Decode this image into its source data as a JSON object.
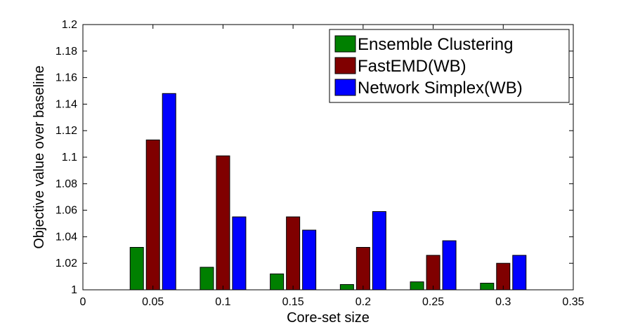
{
  "chart_data": {
    "type": "bar",
    "title": "",
    "xlabel": "Core-set size",
    "ylabel": "Objective value over baseline",
    "x": [
      0.05,
      0.1,
      0.15,
      0.2,
      0.25,
      0.3
    ],
    "xlim": [
      0,
      0.35
    ],
    "ylim": [
      1,
      1.2
    ],
    "xticks": [
      "0",
      "0.05",
      "0.1",
      "0.15",
      "0.2",
      "0.25",
      "0.3",
      "0.35"
    ],
    "yticks": [
      "1",
      "1.02",
      "1.04",
      "1.06",
      "1.08",
      "1.1",
      "1.12",
      "1.14",
      "1.16",
      "1.18",
      "1.2"
    ],
    "legend_position": "top-right",
    "grid": false,
    "series": [
      {
        "name": "Ensemble Clustering",
        "color": "#008000",
        "values": [
          1.032,
          1.017,
          1.012,
          1.004,
          1.006,
          1.005
        ]
      },
      {
        "name": "FastEMD(WB)",
        "color": "#800000",
        "values": [
          1.113,
          1.101,
          1.055,
          1.032,
          1.026,
          1.02
        ]
      },
      {
        "name": "Network Simplex(WB)",
        "color": "#0000ff",
        "values": [
          1.148,
          1.055,
          1.045,
          1.059,
          1.037,
          1.026
        ]
      }
    ]
  }
}
